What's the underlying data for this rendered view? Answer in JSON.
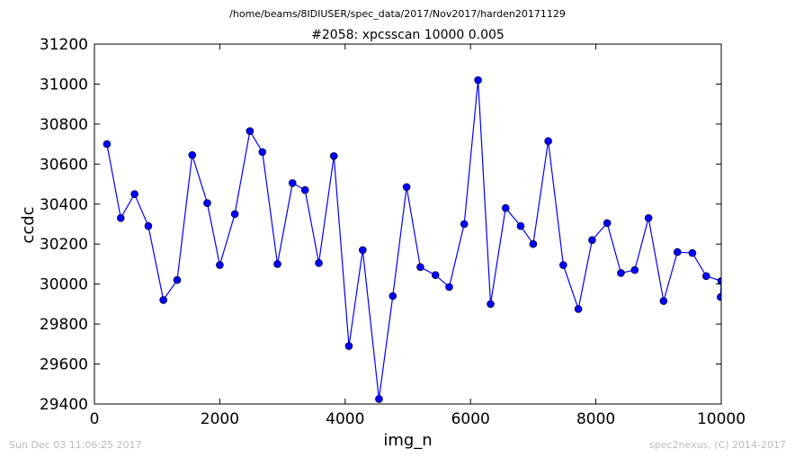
{
  "header": {
    "path": "/home/beams/8IDIUSER/spec_data/2017/Nov2017/harden20171129",
    "scan_title": "#2058: xpcsscan 10000 0.005"
  },
  "footer": {
    "timestamp": "Sun Dec 03 11:06:25 2017",
    "credit": "spec2nexus, (C) 2014-2017"
  },
  "chart_data": {
    "type": "line",
    "xlabel": "img_n",
    "ylabel": "ccdc",
    "xlim": [
      0,
      10000
    ],
    "ylim": [
      29400,
      31200
    ],
    "xticks": [
      "0",
      "2000",
      "4000",
      "6000",
      "8000",
      "10000"
    ],
    "yticks": [
      "29400",
      "29600",
      "29800",
      "30000",
      "30200",
      "30400",
      "30600",
      "30800",
      "31000",
      "31200"
    ],
    "grid": false,
    "line_color": "#0000ff",
    "marker_color": "#0000ff",
    "series": [
      {
        "x": [
          200,
          420,
          640,
          860,
          1100,
          1320,
          1560,
          1800,
          2000,
          2240,
          2480,
          2680,
          2920,
          3160,
          3360,
          3580,
          3820,
          4060,
          4280,
          4540,
          4760,
          4980,
          5200,
          5440,
          5660,
          5900,
          6120,
          6320,
          6560,
          6800,
          7000,
          7240,
          7480,
          7720,
          7940,
          8180,
          8400,
          8620,
          8840,
          9080,
          9300,
          9540,
          9760,
          10000,
          9990
        ],
        "y": [
          30700,
          30330,
          30450,
          30290,
          29920,
          30020,
          30645,
          30405,
          30095,
          30350,
          30765,
          30660,
          30100,
          30505,
          30470,
          30105,
          30640,
          29690,
          30170,
          29425,
          29940,
          30485,
          30085,
          30045,
          29985,
          30300,
          31020,
          29900,
          30380,
          30290,
          30200,
          30715,
          30095,
          29875,
          30220,
          30305,
          30055,
          30070,
          30330,
          29915,
          30160,
          30155,
          30040,
          30015,
          29935
        ]
      }
    ]
  }
}
